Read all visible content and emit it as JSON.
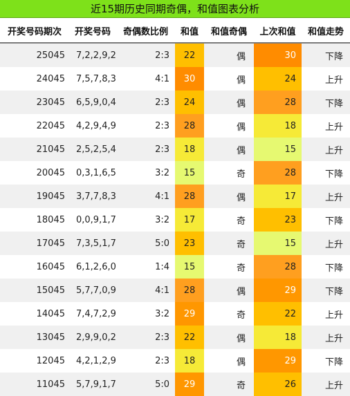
{
  "title": "近15期历史同期奇偶，和值图表分析",
  "headers": [
    "开奖号码期次",
    "开奖号码",
    "奇偶数比例",
    "和值",
    "和值奇偶",
    "上次和值",
    "和值走势"
  ],
  "colors": {
    "s15": "#e6f971",
    "s17": "#f6ea37",
    "s18": "#f6ea37",
    "s22": "#ffbf00",
    "s23": "#ffbf00",
    "s24": "#ffbf00",
    "s26": "#ffbf00",
    "s28": "#ff9f1f",
    "s29": "#ff9700",
    "s30": "#ff8c00"
  },
  "rows": [
    {
      "period": "25045",
      "numbers": "7,2,2,9,2",
      "ratio": "2:3",
      "sum": "22",
      "parity": "偶",
      "prev_sum": "30",
      "trend": "下降"
    },
    {
      "period": "24045",
      "numbers": "7,5,7,8,3",
      "ratio": "4:1",
      "sum": "30",
      "parity": "偶",
      "prev_sum": "24",
      "trend": "上升"
    },
    {
      "period": "23045",
      "numbers": "6,5,9,0,4",
      "ratio": "2:3",
      "sum": "24",
      "parity": "偶",
      "prev_sum": "28",
      "trend": "下降"
    },
    {
      "period": "22045",
      "numbers": "4,2,9,4,9",
      "ratio": "2:3",
      "sum": "28",
      "parity": "偶",
      "prev_sum": "18",
      "trend": "上升"
    },
    {
      "period": "21045",
      "numbers": "2,5,2,5,4",
      "ratio": "2:3",
      "sum": "18",
      "parity": "偶",
      "prev_sum": "15",
      "trend": "上升"
    },
    {
      "period": "20045",
      "numbers": "0,3,1,6,5",
      "ratio": "3:2",
      "sum": "15",
      "parity": "奇",
      "prev_sum": "28",
      "trend": "下降"
    },
    {
      "period": "19045",
      "numbers": "3,7,7,8,3",
      "ratio": "4:1",
      "sum": "28",
      "parity": "偶",
      "prev_sum": "17",
      "trend": "上升"
    },
    {
      "period": "18045",
      "numbers": "0,0,9,1,7",
      "ratio": "3:2",
      "sum": "17",
      "parity": "奇",
      "prev_sum": "23",
      "trend": "下降"
    },
    {
      "period": "17045",
      "numbers": "7,3,5,1,7",
      "ratio": "5:0",
      "sum": "23",
      "parity": "奇",
      "prev_sum": "15",
      "trend": "上升"
    },
    {
      "period": "16045",
      "numbers": "6,1,2,6,0",
      "ratio": "1:4",
      "sum": "15",
      "parity": "奇",
      "prev_sum": "28",
      "trend": "下降"
    },
    {
      "period": "15045",
      "numbers": "5,7,7,0,9",
      "ratio": "4:1",
      "sum": "28",
      "parity": "偶",
      "prev_sum": "29",
      "trend": "下降"
    },
    {
      "period": "14045",
      "numbers": "7,4,7,2,9",
      "ratio": "3:2",
      "sum": "29",
      "parity": "奇",
      "prev_sum": "22",
      "trend": "上升"
    },
    {
      "period": "13045",
      "numbers": "2,9,9,0,2",
      "ratio": "2:3",
      "sum": "22",
      "parity": "偶",
      "prev_sum": "18",
      "trend": "上升"
    },
    {
      "period": "12045",
      "numbers": "4,2,1,2,9",
      "ratio": "2:3",
      "sum": "18",
      "parity": "偶",
      "prev_sum": "29",
      "trend": "下降"
    },
    {
      "period": "11045",
      "numbers": "5,7,9,1,7",
      "ratio": "5:0",
      "sum": "29",
      "parity": "奇",
      "prev_sum": "26",
      "trend": "上升"
    }
  ]
}
